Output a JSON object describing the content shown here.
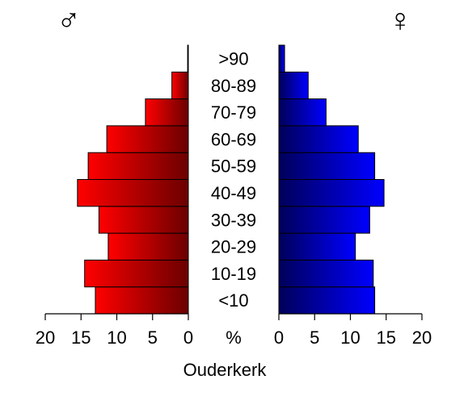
{
  "chart_data": {
    "type": "pyramid",
    "title": "Ouderkerk",
    "x_label": "%",
    "categories": [
      "<10",
      "10-19",
      "20-29",
      "30-39",
      "40-49",
      "50-59",
      "60-69",
      "70-79",
      "80-89",
      ">90"
    ],
    "series": [
      {
        "name": "♂",
        "side": "left",
        "gradient": [
          "#ff0000",
          "#6b0000"
        ],
        "values": [
          13.0,
          14.5,
          11.2,
          12.5,
          15.5,
          14.0,
          11.4,
          6.0,
          2.3,
          0.1
        ]
      },
      {
        "name": "♀",
        "side": "right",
        "gradient": [
          "#00005a",
          "#0000ff"
        ],
        "values": [
          13.4,
          13.2,
          10.7,
          12.7,
          14.7,
          13.4,
          11.1,
          6.6,
          4.1,
          0.8
        ]
      }
    ],
    "xlim": [
      0,
      20
    ],
    "xticks": [
      0,
      5,
      10,
      15,
      20
    ]
  }
}
